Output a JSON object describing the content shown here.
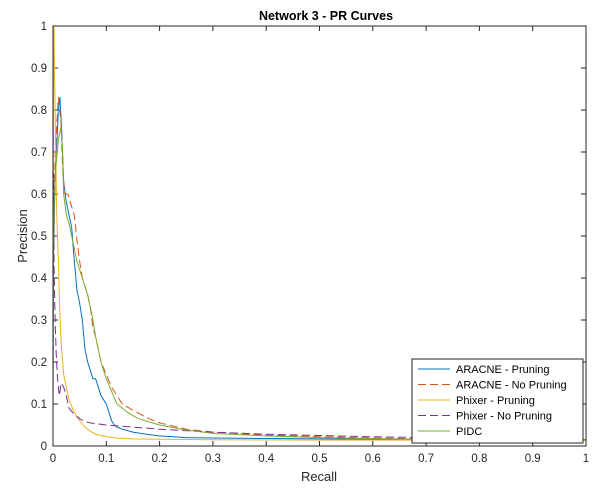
{
  "chart_data": {
    "type": "line",
    "title": "Network 3 - PR Curves",
    "xlabel": "Recall",
    "ylabel": "Precision",
    "xlim": [
      0,
      1
    ],
    "ylim": [
      0,
      1
    ],
    "xticks": [
      0,
      0.1,
      0.2,
      0.3,
      0.4,
      0.5,
      0.6,
      0.7,
      0.8,
      0.9,
      1
    ],
    "yticks": [
      0,
      0.1,
      0.2,
      0.3,
      0.4,
      0.5,
      0.6,
      0.7,
      0.8,
      0.9,
      1
    ],
    "xtick_labels": [
      "0",
      "0.1",
      "0.2",
      "0.3",
      "0.4",
      "0.5",
      "0.6",
      "0.7",
      "0.8",
      "0.9",
      "1"
    ],
    "ytick_labels": [
      "0",
      "0.1",
      "0.2",
      "0.3",
      "0.4",
      "0.5",
      "0.6",
      "0.7",
      "0.8",
      "0.9",
      "1"
    ],
    "grid": false,
    "legend_position": "bottom-right",
    "series": [
      {
        "name": "ARACNE - Pruning",
        "color": "#0072BD",
        "dash": "solid",
        "x": [
          0,
          0.001,
          0.003,
          0.005,
          0.008,
          0.01,
          0.013,
          0.016,
          0.02,
          0.025,
          0.03,
          0.035,
          0.04,
          0.045,
          0.05,
          0.055,
          0.06,
          0.065,
          0.07,
          0.075,
          0.08,
          0.085,
          0.09,
          0.095,
          0.1,
          0.105,
          0.11,
          0.115,
          0.12,
          0.13,
          0.15,
          0.18,
          0.2,
          0.25,
          0.3,
          0.4,
          0.5,
          0.6,
          0.7,
          0.8,
          0.9,
          1.0
        ],
        "y": [
          0.08,
          0.45,
          0.58,
          0.68,
          0.74,
          0.8,
          0.83,
          0.76,
          0.63,
          0.58,
          0.55,
          0.52,
          0.44,
          0.37,
          0.34,
          0.3,
          0.23,
          0.2,
          0.18,
          0.16,
          0.16,
          0.14,
          0.12,
          0.11,
          0.1,
          0.08,
          0.06,
          0.05,
          0.045,
          0.04,
          0.033,
          0.027,
          0.024,
          0.02,
          0.019,
          0.018,
          0.017,
          0.016,
          0.016,
          0.015,
          0.015,
          0.015
        ]
      },
      {
        "name": "ARACNE - No Pruning",
        "color": "#D95319",
        "dash": "dashed",
        "x": [
          0,
          0.002,
          0.005,
          0.01,
          0.015,
          0.018,
          0.022,
          0.028,
          0.035,
          0.04,
          0.045,
          0.05,
          0.055,
          0.06,
          0.065,
          0.07,
          0.075,
          0.08,
          0.09,
          0.1,
          0.11,
          0.12,
          0.13,
          0.15,
          0.18,
          0.2,
          0.25,
          0.3,
          0.4,
          0.5,
          0.6,
          0.7,
          0.8,
          0.9,
          1.0
        ],
        "y": [
          0.4,
          0.6,
          0.72,
          0.83,
          0.77,
          0.66,
          0.6,
          0.6,
          0.57,
          0.55,
          0.49,
          0.44,
          0.4,
          0.38,
          0.36,
          0.33,
          0.28,
          0.26,
          0.2,
          0.17,
          0.14,
          0.12,
          0.1,
          0.085,
          0.065,
          0.055,
          0.04,
          0.033,
          0.026,
          0.022,
          0.019,
          0.017,
          0.016,
          0.015,
          0.015
        ]
      },
      {
        "name": "Phixer - Pruning",
        "color": "#EDB120",
        "dash": "solid",
        "x": [
          0,
          0.001,
          0.002,
          0.003,
          0.005,
          0.007,
          0.01,
          0.012,
          0.015,
          0.02,
          0.025,
          0.03,
          0.04,
          0.05,
          0.06,
          0.07,
          0.08,
          0.1,
          0.12,
          0.15,
          0.2,
          0.3,
          0.5,
          0.7,
          0.9,
          1.0
        ],
        "y": [
          0.1,
          0.85,
          1.0,
          0.88,
          0.72,
          0.55,
          0.45,
          0.35,
          0.25,
          0.17,
          0.14,
          0.11,
          0.08,
          0.06,
          0.045,
          0.035,
          0.028,
          0.022,
          0.019,
          0.017,
          0.016,
          0.015,
          0.014,
          0.014,
          0.013,
          0.013
        ]
      },
      {
        "name": "Phixer - No Pruning",
        "color": "#7E2F8E",
        "dash": "dashed",
        "x": [
          0,
          0.001,
          0.002,
          0.004,
          0.006,
          0.008,
          0.01,
          0.012,
          0.015,
          0.02,
          0.025,
          0.03,
          0.04,
          0.05,
          0.06,
          0.07,
          0.1,
          0.15,
          0.2,
          0.3,
          0.4,
          0.5,
          0.6,
          0.7,
          0.8,
          0.9,
          1.0
        ],
        "y": [
          0.5,
          0.65,
          0.42,
          0.3,
          0.22,
          0.17,
          0.14,
          0.12,
          0.15,
          0.14,
          0.12,
          0.09,
          0.075,
          0.065,
          0.058,
          0.055,
          0.05,
          0.045,
          0.04,
          0.033,
          0.028,
          0.025,
          0.022,
          0.02,
          0.018,
          0.016,
          0.015
        ]
      },
      {
        "name": "PIDC",
        "color": "#77AC30",
        "dash": "solid",
        "x": [
          0,
          0.002,
          0.005,
          0.008,
          0.01,
          0.012,
          0.015,
          0.018,
          0.02,
          0.025,
          0.03,
          0.035,
          0.04,
          0.045,
          0.05,
          0.055,
          0.06,
          0.065,
          0.07,
          0.075,
          0.08,
          0.09,
          0.1,
          0.11,
          0.12,
          0.14,
          0.16,
          0.2,
          0.25,
          0.3,
          0.4,
          0.5,
          0.6,
          0.7,
          0.8,
          0.9,
          1.0
        ],
        "y": [
          0.4,
          0.58,
          0.66,
          0.7,
          0.73,
          0.74,
          0.76,
          0.7,
          0.6,
          0.55,
          0.53,
          0.5,
          0.47,
          0.44,
          0.42,
          0.4,
          0.38,
          0.36,
          0.33,
          0.3,
          0.26,
          0.2,
          0.16,
          0.13,
          0.1,
          0.08,
          0.065,
          0.05,
          0.038,
          0.03,
          0.024,
          0.02,
          0.018,
          0.016,
          0.015,
          0.015,
          0.015
        ]
      }
    ]
  }
}
